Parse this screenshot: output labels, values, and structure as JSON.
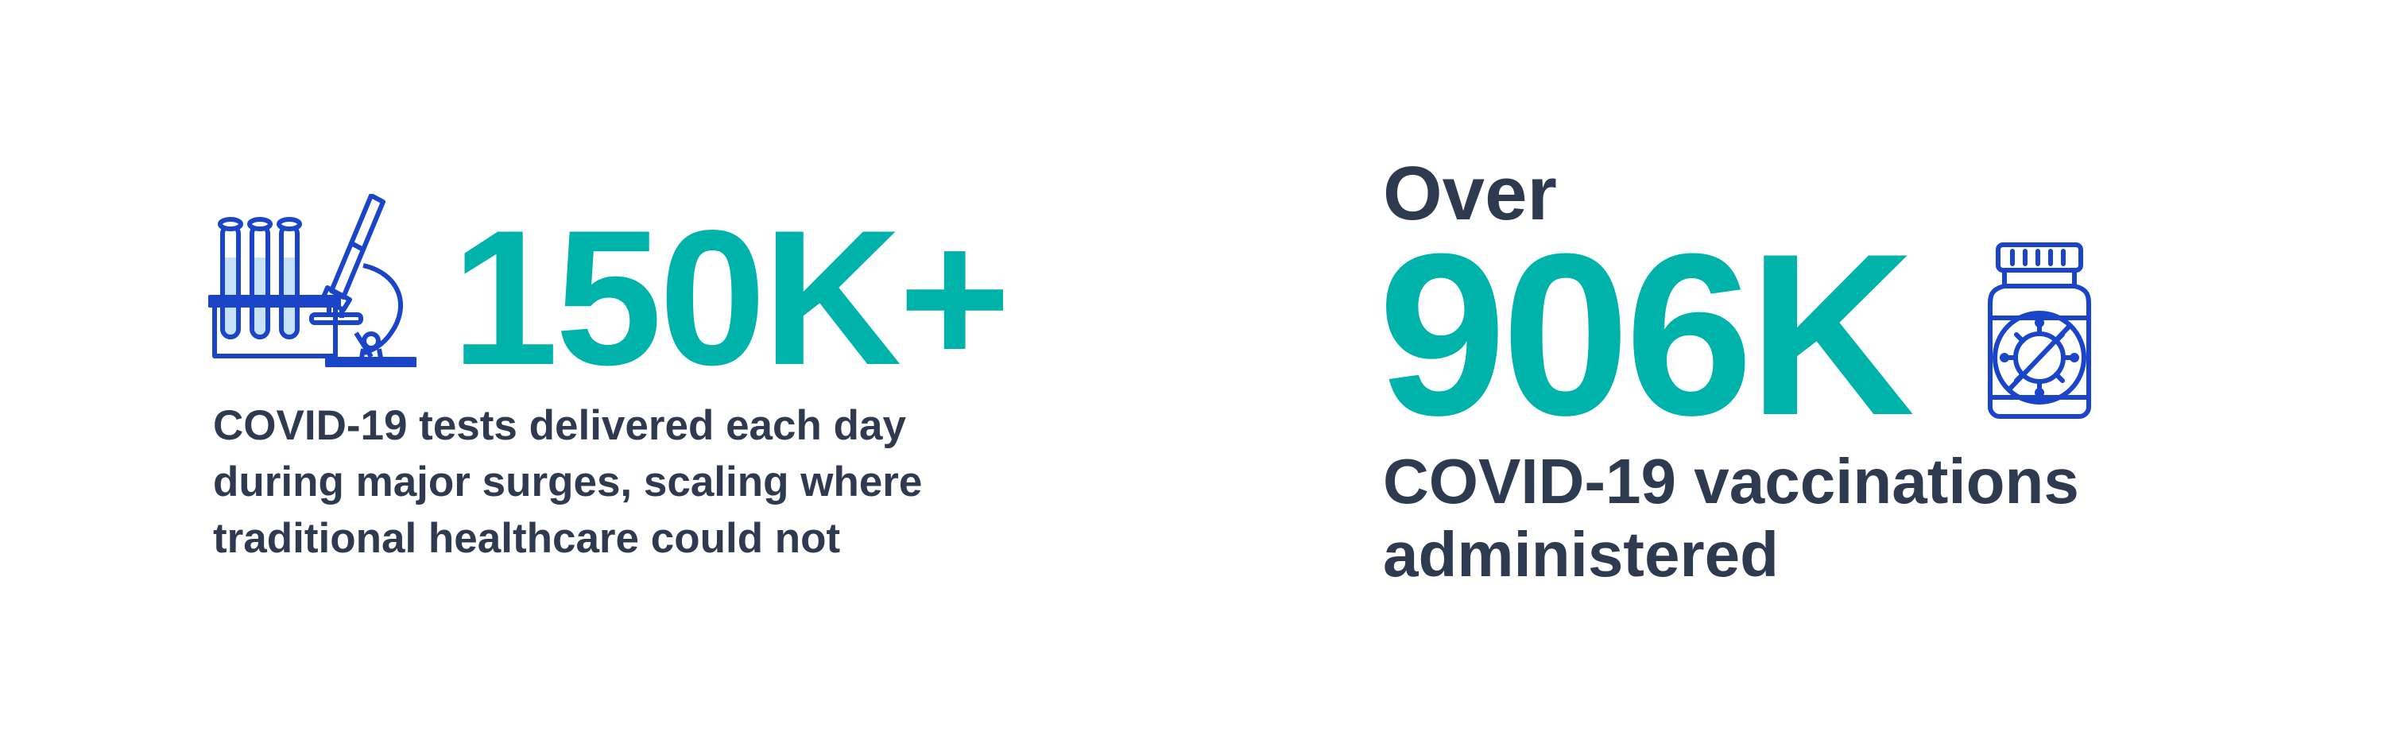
{
  "colors": {
    "accent": "#00b3aa",
    "text": "#2d3a4f",
    "icon": "#1a45c9",
    "icon_fill": "#c7e2f6"
  },
  "stat_tests": {
    "icon": "microscope-test-tubes-icon",
    "value": "150K+",
    "description_lines": [
      "COVID-19 tests delivered each day",
      "during major surges, scaling where",
      "traditional healthcare could not"
    ]
  },
  "stat_vaccinations": {
    "icon": "vaccine-vial-virus-icon",
    "prefix": "Over",
    "value": "906K",
    "description_lines": [
      "COVID-19 vaccinations",
      "administered"
    ]
  }
}
